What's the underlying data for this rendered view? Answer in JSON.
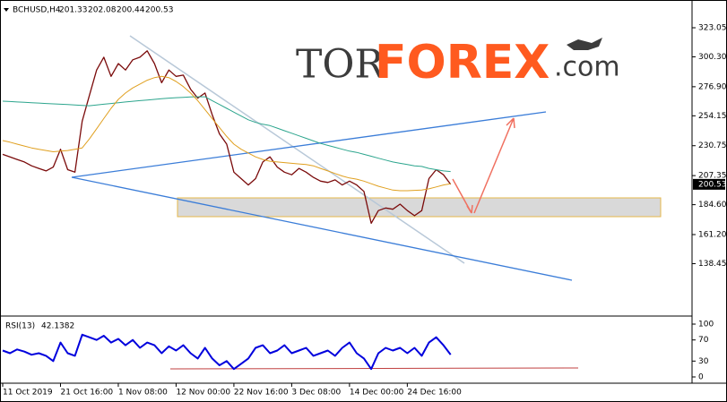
{
  "header": {
    "symbol": "BCHUSD,H4",
    "ohlc": [
      201.33,
      202.08,
      200.44,
      200.53
    ]
  },
  "watermark": {
    "prefix": "TOR",
    "brand": "FOREX",
    "suffix": ".com"
  },
  "chart_data": [
    {
      "type": "line",
      "categories": [
        "11 Oct 2019",
        null,
        null,
        null,
        null,
        null,
        null,
        null,
        "21 Oct 16:00",
        null,
        null,
        null,
        null,
        null,
        null,
        null,
        "1 Nov 08:00",
        null,
        null,
        null,
        null,
        null,
        null,
        null,
        "12 Nov 00:00",
        null,
        null,
        null,
        null,
        null,
        null,
        null,
        "22 Nov 16:00",
        null,
        null,
        null,
        null,
        null,
        null,
        null,
        "3 Dec 08:00",
        null,
        null,
        null,
        null,
        null,
        null,
        null,
        "14 Dec 00:00",
        null,
        null,
        null,
        null,
        null,
        null,
        null,
        "24 Dec 16:00",
        null,
        null,
        null,
        null,
        null,
        null
      ],
      "series": [
        {
          "color": "#7a0a0a",
          "width": 1.3,
          "values": [
            224,
            222,
            220,
            218,
            215,
            213,
            211,
            214,
            228,
            212,
            210,
            250,
            270,
            290,
            300,
            285,
            295,
            290,
            298,
            300,
            305,
            295,
            280,
            290,
            285,
            286,
            275,
            268,
            272,
            255,
            240,
            232,
            210,
            205,
            200,
            205,
            218,
            222,
            214,
            210,
            208,
            213,
            210,
            206,
            203,
            202,
            204,
            200,
            203,
            200,
            195,
            170,
            180,
            182,
            181,
            185,
            180,
            176,
            180,
            205,
            212,
            208,
            200.53
          ]
        },
        {
          "color": "#2ca58d",
          "width": 1,
          "values": [
            265.6,
            265.3,
            265,
            264.7,
            264.4,
            264.1,
            263.8,
            263.5,
            263.2,
            262.9,
            262.6,
            262.3,
            262,
            262.6,
            263.2,
            263.8,
            264.4,
            265,
            265.5,
            266,
            266.5,
            267,
            267.5,
            268,
            268.3,
            268.6,
            268.9,
            269,
            269,
            266,
            263,
            260,
            257,
            254,
            251,
            249,
            247.5,
            246.5,
            244.5,
            242.5,
            240.5,
            238.5,
            236.5,
            234.5,
            232.5,
            231,
            229.5,
            228,
            226.5,
            225.5,
            224,
            222.5,
            221,
            219.5,
            218,
            217,
            216,
            215,
            214.5,
            213,
            212,
            211,
            210.5
          ]
        },
        {
          "color": "#e0a020",
          "width": 1,
          "values": [
            234.8,
            233.5,
            232,
            230.5,
            229,
            228,
            227,
            226,
            226.5,
            227,
            228,
            229,
            236,
            244,
            252,
            260,
            267,
            272,
            276,
            279,
            282,
            284,
            285,
            284,
            281,
            277,
            272,
            266,
            259,
            252,
            245,
            238,
            232,
            228,
            225,
            222,
            220,
            218.6,
            218,
            217.5,
            217,
            216.5,
            216,
            215,
            213,
            211,
            209,
            207,
            205.5,
            204.6,
            203,
            201,
            199,
            197.5,
            196,
            195.5,
            195.5,
            195.8,
            196,
            197,
            198.5,
            200,
            201
          ]
        }
      ],
      "ylim": [
        98.14,
        343.37
      ],
      "yticks": [
        323.05,
        {
          "value": 300.3,
          "label": "300.30"
        },
        {
          "value": 276.9,
          "label": "276.90"
        },
        254.15,
        230.75,
        207.35,
        {
          "value": 184.6,
          "label": "184.60"
        },
        {
          "value": 161.2,
          "label": "161.20"
        },
        138.45
      ]
    },
    {
      "type": "line",
      "title": "RSI(13)",
      "series": [
        {
          "color": "#0000dd",
          "width": 2,
          "values": [
            50,
            45,
            52,
            48,
            42,
            45,
            40,
            30,
            65,
            45,
            40,
            80,
            75,
            70,
            78,
            65,
            72,
            60,
            70,
            55,
            65,
            60,
            45,
            58,
            50,
            60,
            45,
            35,
            55,
            35,
            22,
            30,
            15,
            25,
            35,
            55,
            60,
            45,
            50,
            60,
            45,
            50,
            55,
            40,
            45,
            50,
            40,
            55,
            65,
            45,
            35,
            15,
            45,
            55,
            50,
            55,
            45,
            55,
            40,
            65,
            75,
            60,
            42.1382
          ]
        }
      ],
      "ylim": [
        -11.86,
        111.86
      ],
      "yticks": [
        0,
        30,
        70,
        100
      ]
    }
  ]
}
